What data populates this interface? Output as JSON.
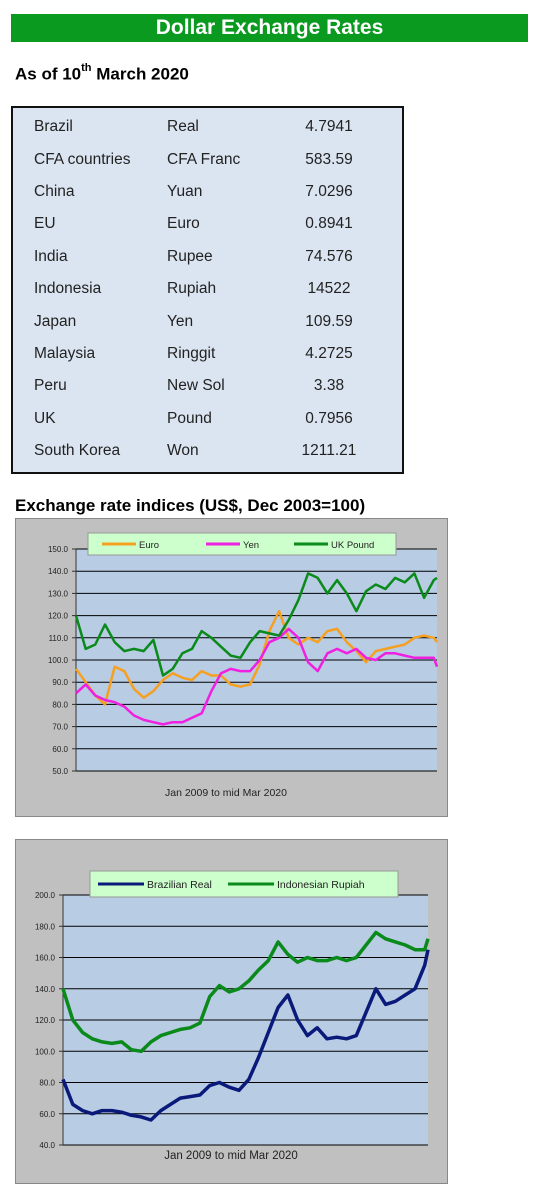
{
  "header": {
    "title": "Dollar Exchange Rates"
  },
  "as_of": {
    "prefix": "As of 10",
    "sup": "th",
    "suffix": " March 2020"
  },
  "rates": [
    {
      "country": "Brazil",
      "currency": "Real",
      "rate": "4.7941"
    },
    {
      "country": "CFA countries",
      "currency": "CFA Franc",
      "rate": "583.59"
    },
    {
      "country": "China",
      "currency": "Yuan",
      "rate": "7.0296"
    },
    {
      "country": "EU",
      "currency": "Euro",
      "rate": "0.8941"
    },
    {
      "country": "India",
      "currency": "Rupee",
      "rate": "74.576"
    },
    {
      "country": "Indonesia",
      "currency": "Rupiah",
      "rate": "14522"
    },
    {
      "country": "Japan",
      "currency": "Yen",
      "rate": "109.59"
    },
    {
      "country": "Malaysia",
      "currency": "Ringgit",
      "rate": "4.2725"
    },
    {
      "country": "Peru",
      "currency": "New Sol",
      "rate": "3.38"
    },
    {
      "country": "UK",
      "currency": "Pound",
      "rate": "0.7956"
    },
    {
      "country": "South Korea",
      "currency": "Won",
      "rate": "1211.21"
    }
  ],
  "indices": {
    "title": "Exchange rate indices (US$, Dec 2003=100)"
  },
  "chart_data": [
    {
      "type": "line",
      "title": "",
      "xlabel": "Jan 2009  to mid Mar 2020",
      "ylabel": "",
      "x_range": [
        2009.0,
        2020.2
      ],
      "ylim": [
        50,
        150
      ],
      "yticks": [
        "50.0",
        "60.0",
        "70.0",
        "80.0",
        "90.0",
        "100.0",
        "110.0",
        "120.0",
        "130.0",
        "140.0",
        "150.0"
      ],
      "grid": true,
      "legend_position": "top",
      "series": [
        {
          "name": "Euro",
          "color": "#f5a020",
          "x": [
            2009.0,
            2009.3,
            2009.6,
            2009.9,
            2010.2,
            2010.5,
            2010.8,
            2011.1,
            2011.4,
            2011.7,
            2012.0,
            2012.3,
            2012.6,
            2012.9,
            2013.2,
            2013.5,
            2013.8,
            2014.1,
            2014.4,
            2014.7,
            2015.0,
            2015.3,
            2015.6,
            2015.9,
            2016.2,
            2016.5,
            2016.8,
            2017.1,
            2017.4,
            2017.7,
            2018.0,
            2018.3,
            2018.6,
            2018.9,
            2019.2,
            2019.5,
            2019.8,
            2020.1,
            2020.2
          ],
          "y": [
            96,
            90,
            84,
            80,
            97,
            95,
            87,
            83,
            86,
            91,
            94,
            92,
            91,
            95,
            93,
            93,
            89,
            88,
            89,
            98,
            113,
            122,
            110,
            107,
            110,
            108,
            113,
            114,
            108,
            104,
            99,
            104,
            105,
            106,
            107,
            110,
            111,
            110,
            108
          ]
        },
        {
          "name": "Yen",
          "color": "#f020e0",
          "x": [
            2009.0,
            2009.3,
            2009.6,
            2009.9,
            2010.2,
            2010.5,
            2010.8,
            2011.1,
            2011.4,
            2011.7,
            2012.0,
            2012.3,
            2012.6,
            2012.9,
            2013.2,
            2013.5,
            2013.8,
            2014.1,
            2014.4,
            2014.7,
            2015.0,
            2015.3,
            2015.6,
            2015.9,
            2016.2,
            2016.5,
            2016.8,
            2017.1,
            2017.4,
            2017.7,
            2018.0,
            2018.3,
            2018.6,
            2018.9,
            2019.2,
            2019.5,
            2019.8,
            2020.1,
            2020.2
          ],
          "y": [
            85,
            89,
            84,
            82,
            81,
            79,
            75,
            73,
            72,
            71,
            72,
            72,
            74,
            76,
            86,
            94,
            96,
            95,
            95,
            100,
            108,
            110,
            114,
            110,
            99,
            95,
            103,
            105,
            103,
            105,
            101,
            100,
            103,
            103,
            102,
            101,
            101,
            101,
            97
          ]
        },
        {
          "name": "UK Pound",
          "color": "#0a8a1a",
          "x": [
            2009.0,
            2009.3,
            2009.6,
            2009.9,
            2010.2,
            2010.5,
            2010.8,
            2011.1,
            2011.4,
            2011.7,
            2012.0,
            2012.3,
            2012.6,
            2012.9,
            2013.2,
            2013.5,
            2013.8,
            2014.1,
            2014.4,
            2014.7,
            2015.0,
            2015.3,
            2015.6,
            2015.9,
            2016.2,
            2016.5,
            2016.8,
            2017.1,
            2017.4,
            2017.7,
            2018.0,
            2018.3,
            2018.6,
            2018.9,
            2019.2,
            2019.5,
            2019.8,
            2020.1,
            2020.2
          ],
          "y": [
            120,
            105,
            107,
            116,
            108,
            104,
            105,
            104,
            109,
            93,
            96,
            103,
            105,
            113,
            110,
            106,
            102,
            101,
            108,
            113,
            112,
            111,
            118,
            127,
            139,
            137,
            130,
            136,
            130,
            122,
            131,
            134,
            132,
            137,
            135,
            139,
            128,
            136,
            137
          ]
        }
      ]
    },
    {
      "type": "line",
      "title": "",
      "xlabel": "Jan 2009  to mid Mar 2020",
      "ylabel": "",
      "x_range": [
        2009.0,
        2020.2
      ],
      "ylim": [
        40,
        200
      ],
      "yticks": [
        "40.0",
        "60.0",
        "80.0",
        "100.0",
        "120.0",
        "140.0",
        "160.0",
        "180.0",
        "200.0"
      ],
      "grid": true,
      "legend_position": "top",
      "series": [
        {
          "name": "Brazilian Real",
          "color": "#0a1a7a",
          "x": [
            2009.0,
            2009.3,
            2009.6,
            2009.9,
            2010.2,
            2010.5,
            2010.8,
            2011.1,
            2011.4,
            2011.7,
            2012.0,
            2012.3,
            2012.6,
            2012.9,
            2013.2,
            2013.5,
            2013.8,
            2014.1,
            2014.4,
            2014.7,
            2015.0,
            2015.3,
            2015.6,
            2015.9,
            2016.2,
            2016.5,
            2016.8,
            2017.1,
            2017.4,
            2017.7,
            2018.0,
            2018.3,
            2018.6,
            2018.9,
            2019.2,
            2019.5,
            2019.8,
            2020.1,
            2020.2
          ],
          "y": [
            82,
            66,
            62,
            60,
            62,
            62,
            61,
            59,
            58,
            56,
            62,
            66,
            70,
            71,
            72,
            78,
            80,
            77,
            75,
            82,
            96,
            112,
            128,
            136,
            120,
            110,
            115,
            108,
            109,
            108,
            110,
            125,
            140,
            130,
            132,
            136,
            140,
            155,
            165
          ]
        },
        {
          "name": "Indonesian Rupiah",
          "color": "#0a8a1a",
          "x": [
            2009.0,
            2009.3,
            2009.6,
            2009.9,
            2010.2,
            2010.5,
            2010.8,
            2011.1,
            2011.4,
            2011.7,
            2012.0,
            2012.3,
            2012.6,
            2012.9,
            2013.2,
            2013.5,
            2013.8,
            2014.1,
            2014.4,
            2014.7,
            2015.0,
            2015.3,
            2015.6,
            2015.9,
            2016.2,
            2016.5,
            2016.8,
            2017.1,
            2017.4,
            2017.7,
            2018.0,
            2018.3,
            2018.6,
            2018.9,
            2019.2,
            2019.5,
            2019.8,
            2020.1,
            2020.2
          ],
          "y": [
            140,
            120,
            112,
            108,
            106,
            105,
            106,
            101,
            100,
            106,
            110,
            112,
            114,
            115,
            118,
            135,
            142,
            138,
            140,
            145,
            152,
            158,
            170,
            162,
            157,
            160,
            158,
            158,
            160,
            158,
            160,
            168,
            176,
            172,
            170,
            168,
            165,
            165,
            172
          ]
        }
      ]
    }
  ]
}
